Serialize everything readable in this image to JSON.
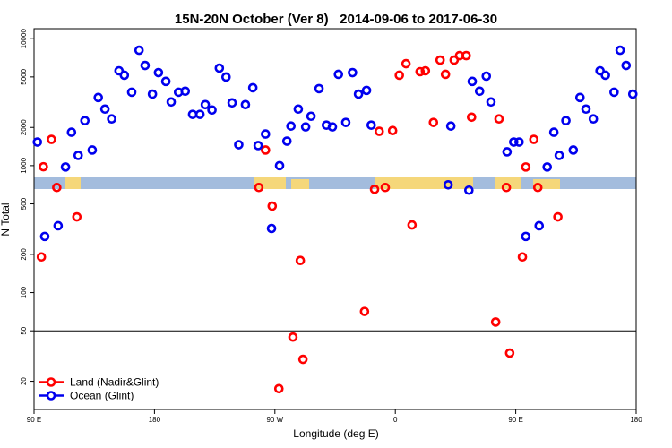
{
  "chart_data": {
    "type": "scatter",
    "title": "15N-20N October (Ver 8)   2014-09-06 to 2017-06-30",
    "x_label": "Longitude (deg E)",
    "y_label": "N Total",
    "log_y": true,
    "xlim": [
      90,
      540
    ],
    "ylim": [
      12,
      12000
    ],
    "xticks": [
      {
        "value": 90,
        "label": "90 E"
      },
      180,
      {
        "value": 270,
        "label": "90 W"
      },
      {
        "value": 360,
        "label": "0"
      },
      {
        "value": 450,
        "label": "90 E"
      },
      {
        "value": 540,
        "label": "180"
      }
    ],
    "yticks": [
      20,
      50,
      100,
      200,
      500,
      1000,
      2000,
      5000,
      10000
    ],
    "hline": 50,
    "legend_position": "lower left",
    "series": [
      {
        "name": "Land (Nadir&Glint)",
        "color": "#ff0000",
        "x": [
          95.5,
          97,
          103,
          107,
          122,
          263,
          258,
          268,
          289,
          283.5,
          291,
          273,
          337,
          344.5,
          348,
          352.5,
          358,
          363,
          368,
          372.5,
          378.5,
          382.5,
          388.5,
          393.5,
          397.5,
          404,
          408,
          413,
          417,
          435,
          437.5,
          443,
          445.5,
          455,
          457.5,
          463.5,
          466.5,
          481.5
        ],
        "values": [
          191,
          980,
          1610,
          673,
          395,
          1327,
          673,
          480,
          179,
          44.6,
          29.8,
          17.5,
          71,
          651,
          1864,
          673,
          1890,
          5157,
          6360,
          341,
          5500,
          5590,
          2190,
          6790,
          5240,
          6790,
          7360,
          7360,
          2410,
          58.6,
          2335,
          673,
          33.4,
          191,
          976,
          1610,
          673,
          395
        ]
      },
      {
        "name": "Ocean (Glint)",
        "color": "#0000ee",
        "x": [
          92.5,
          98,
          108,
          113.5,
          118,
          123,
          128,
          133.5,
          138,
          143,
          148,
          153.5,
          157.5,
          163,
          168.5,
          173,
          178.5,
          183,
          188.5,
          192.5,
          198,
          203,
          208.5,
          214,
          218,
          223,
          228.5,
          233.5,
          238,
          243,
          248,
          253.5,
          257.5,
          263,
          267.5,
          273.5,
          279,
          282,
          287.5,
          293,
          297,
          303,
          308.5,
          313,
          317.5,
          323,
          328,
          332.5,
          338.5,
          342,
          399.5,
          401.5,
          415,
          417.5,
          423,
          428,
          431.5,
          443.5,
          448.5,
          452.5,
          457.5,
          467.5,
          473.5,
          478.5,
          482.5,
          487.5,
          493,
          498,
          502.5,
          508,
          513,
          517,
          523.5,
          528,
          532.5,
          537.5
        ],
        "values": [
          1535,
          277,
          336,
          976,
          1833,
          1205,
          2262,
          1327,
          3442,
          2790,
          2335,
          5590,
          5157,
          3790,
          8110,
          6160,
          3660,
          5410,
          4610,
          3175,
          3790,
          3860,
          2534,
          2534,
          3025,
          2745,
          5870,
          4990,
          3125,
          1462,
          3025,
          4110,
          1440,
          1775,
          320,
          1000,
          1560,
          2051,
          2790,
          2020,
          2450,
          4045,
          2085,
          2020,
          5240,
          2190,
          5410,
          3660,
          3918,
          2085,
          706,
          2051,
          641,
          4610,
          3860,
          5070,
          3175,
          1285,
          1535,
          1535,
          277,
          336,
          976,
          1833,
          1205,
          2262,
          1327,
          3442,
          2790,
          2335,
          5590,
          5157,
          3790,
          8110,
          6160,
          3660
        ]
      }
    ]
  }
}
